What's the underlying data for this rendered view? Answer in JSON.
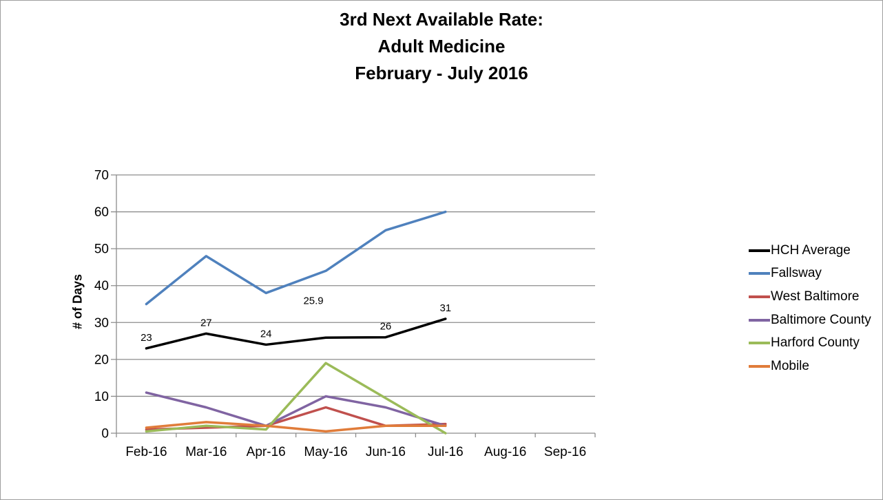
{
  "window": {
    "background": "#FFFFFF",
    "border_color": "#9E9E9E"
  },
  "title": {
    "lines": [
      "3rd Next Available Rate:",
      "Adult Medicine",
      "February - July 2016"
    ]
  },
  "chart_data": {
    "type": "line",
    "title": "3rd Next Available Rate: Adult Medicine February - July 2016",
    "xlabel": "",
    "ylabel": "# of Days",
    "ylim": [
      0,
      70
    ],
    "yticks": [
      0,
      10,
      20,
      30,
      40,
      50,
      60,
      70
    ],
    "categories": [
      "Feb-16",
      "Mar-16",
      "Apr-16",
      "May-16",
      "Jun-16",
      "Jul-16",
      "Aug-16",
      "Sep-16"
    ],
    "grid": true,
    "legend_position": "right",
    "axis_color": "#8C8C8C",
    "gridline_color": "#8C8C8C",
    "text_color": "#000000",
    "series": [
      {
        "name": "HCH Average",
        "color": "#000000",
        "values": [
          23,
          27,
          24,
          25.9,
          26,
          31
        ],
        "data_labels": [
          "23",
          "27",
          "24",
          "25.9",
          "26",
          "31"
        ]
      },
      {
        "name": "Fallsway",
        "color": "#4F81BD",
        "values": [
          35,
          48,
          38,
          44,
          55,
          60
        ]
      },
      {
        "name": "West Baltimore",
        "color": "#C0504D",
        "values": [
          1,
          1.5,
          2,
          7,
          2,
          2.5
        ]
      },
      {
        "name": "Baltimore County",
        "color": "#8064A2",
        "values": [
          11,
          7,
          2,
          10,
          7,
          2
        ]
      },
      {
        "name": "Harford County",
        "color": "#9BBB59",
        "values": [
          0.5,
          2,
          1,
          19,
          9.5,
          0
        ]
      },
      {
        "name": "Mobile",
        "color": "#E07C3A",
        "values": [
          1.5,
          3,
          2,
          0.5,
          2,
          2
        ]
      }
    ]
  }
}
